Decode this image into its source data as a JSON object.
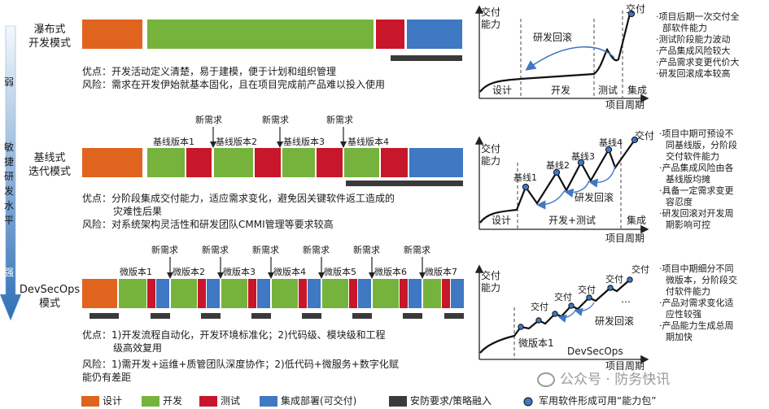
{
  "left_axis": {
    "weak": "弱",
    "mid": [
      "敏",
      "捷",
      "研",
      "发",
      "水",
      "平"
    ],
    "strong": "强"
  },
  "rows": [
    {
      "mode": [
        "瀑布式",
        "开发模式"
      ],
      "pros": "优点：开发活动定义清楚，易于建模，便于计划和组织管理",
      "risk": "风险：需求在开发伊始就基本固化，且在项目完成前产品难以投入使用",
      "bullets": [
        "·项目后期一次交付全",
        "部软件能力",
        "·测试阶段能力波动",
        "·产品集成风险较大",
        "·产品需求变更代价大",
        "·研发回滚成本较高"
      ],
      "chart": {
        "y_label": [
          "交付",
          "能力"
        ],
        "x_label": "项目周期",
        "phases": [
          "设计",
          "开发",
          "测试",
          "集成"
        ],
        "annotation": "研发回滚",
        "deliver": "交付"
      }
    },
    {
      "mode": [
        "基线式",
        "迭代模式"
      ],
      "new_req": [
        "新需求",
        "新需求",
        "新需求",
        "新需求"
      ],
      "versions": [
        "基线版本1",
        "基线版本2",
        "基线版本3",
        "基线版本4"
      ],
      "pros": "优点：分阶段集成交付能力，适应需求变化，避免因关键软件返工造成的",
      "pros2": "灾难性后果",
      "risk": "风险：对系统架构灵活性和研发团队CMMI管理等要求较高",
      "bullets": [
        "·项目中期可预设不",
        "同基线版，分阶段",
        "交付软件能力",
        "·产品集成风险由各",
        "基线版均摊",
        "·具备一定需求变更",
        "容忍度",
        "·研发回滚对开发周",
        "期影响可控"
      ],
      "chart": {
        "y_label": [
          "交付",
          "能力"
        ],
        "x_label": "项目周期",
        "phases": [
          "设计",
          "开发+测试",
          "集成"
        ],
        "annotation": "研发回滚",
        "deliver": "交付",
        "points": [
          "基线1",
          "基线2",
          "基线3",
          "基线4"
        ]
      }
    },
    {
      "mode": [
        "DevSecOps",
        "模式"
      ],
      "new_req": [
        "新需求",
        "新需求",
        "新需求",
        "新需求",
        "新需求",
        "新需求"
      ],
      "versions": [
        "微版本1",
        "微版本2",
        "微版本3",
        "微版本4",
        "微版本5",
        "微版本6",
        "微版本7"
      ],
      "pros": "优点：1)开发流程自动化，开发环境标准化；2)代码级、模块级和工程",
      "pros2": "级高效复用",
      "risk": "风险：1)需开发+运维+质管团队深度协作；2)低代码+微服务+数字化赋",
      "risk2": "能仍有差距",
      "bullets": [
        "·项目中期细分不同",
        "微版本，分阶段交",
        "付软件能力",
        "·产品对需求变化适",
        "应性较强",
        "·产品能力生成总周",
        "期加快"
      ],
      "chart": {
        "y_label": [
          "交付",
          "能力"
        ],
        "x_label": "项目周期",
        "annotation": "研发回滚",
        "deliver": [
          "交付",
          "交付",
          "交付",
          "交付",
          "交付"
        ],
        "ellipsis": "…",
        "v1": "微版本1",
        "devsecops": "DevSecOps"
      }
    }
  ],
  "legend": [
    {
      "label": "设计",
      "color": "#e0641e"
    },
    {
      "label": "开发",
      "color": "#76b33c"
    },
    {
      "label": "测试",
      "color": "#c8162a"
    },
    {
      "label": "集成部署(可交付)",
      "color": "#3f78c3"
    },
    {
      "label": "安防要求/策略融入",
      "color": "#3a3a3a"
    }
  ],
  "legend_dot": "军用软件形成可用“能力包”",
  "watermark": "公众号 · 防务快讯"
}
